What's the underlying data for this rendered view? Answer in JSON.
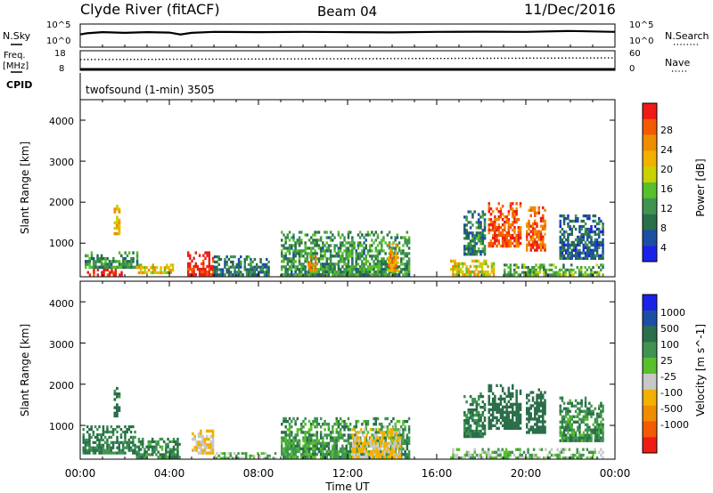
{
  "header": {
    "station": "Clyde River (fitACF)",
    "beam": "Beam 04",
    "date": "11/Dec/2016"
  },
  "sky_panel": {
    "left_label": "N.Sky",
    "right_label": "N.Search",
    "left_ticks": [
      "10^5",
      "10^0"
    ],
    "right_ticks": [
      "10^5",
      "10^0"
    ]
  },
  "freq_panel": {
    "left_label_1": "Freq.",
    "left_label_2": "[MHz]",
    "right_label": "Nave",
    "left_ticks": [
      "18",
      "8"
    ],
    "right_ticks": [
      "60",
      "0"
    ]
  },
  "cpid_panel": {
    "label": "CPID",
    "text": "twofsound (1-min) 3505"
  },
  "x_axis": {
    "tick_labels": [
      "00:00",
      "04:00",
      "08:00",
      "12:00",
      "16:00",
      "20:00",
      "00:00"
    ],
    "label": "Time UT"
  },
  "power_panel": {
    "ylabel": "Slant Range [km]",
    "yticks": [
      "1000",
      "2000",
      "3000",
      "4000"
    ],
    "colorbar_label": "Power [dB]",
    "colorbar_ticks": [
      "4",
      "8",
      "12",
      "16",
      "20",
      "24",
      "28"
    ],
    "colorbar_colors": [
      "#1a22e8",
      "#1c4fa3",
      "#2a6e4a",
      "#3f9452",
      "#58c02a",
      "#c9d100",
      "#f2b000",
      "#f08c00",
      "#f45a00",
      "#ee1c14"
    ]
  },
  "velocity_panel": {
    "ylabel": "Slant Range [km]",
    "yticks": [
      "1000",
      "2000",
      "3000",
      "4000"
    ],
    "colorbar_label": "Velocity [m s^-1]",
    "colorbar_ticks": [
      "1000",
      "500",
      "100",
      "25",
      "-25",
      "-100",
      "-500",
      "-1000"
    ],
    "colorbar_colors": [
      "#1a22e8",
      "#1c4fa3",
      "#2a6e4a",
      "#3f9452",
      "#58c02a",
      "#c8c8c8",
      "#f2b000",
      "#f08c00",
      "#f45a00",
      "#ee1c14"
    ]
  },
  "chart_data": [
    {
      "type": "line",
      "title": "N.Sky / N.Search",
      "x_range_hours": [
        0,
        24
      ],
      "series": [
        {
          "name": "N.Sky",
          "x": [
            0,
            0.3,
            1,
            2,
            3,
            4,
            4.5,
            5,
            6,
            8,
            10,
            12,
            14,
            16,
            18,
            20,
            22,
            24
          ],
          "y": [
            0.55,
            0.6,
            0.65,
            0.62,
            0.65,
            0.63,
            0.55,
            0.62,
            0.66,
            0.65,
            0.66,
            0.65,
            0.64,
            0.66,
            0.67,
            0.66,
            0.7,
            0.66
          ]
        }
      ]
    },
    {
      "type": "line",
      "title": "Freq / Nave",
      "x_range_hours": [
        0,
        24
      ],
      "series": [
        {
          "name": "Freq",
          "x": [
            0,
            24
          ],
          "y": [
            8.6,
            8.6
          ]
        },
        {
          "name": "Nave",
          "x": [
            0,
            24
          ],
          "y": [
            33,
            38
          ]
        }
      ]
    },
    {
      "type": "heatmap",
      "title": "Power [dB]",
      "xlabel": "Time UT",
      "ylabel": "Slant Range [km]",
      "x_range_hours": [
        0,
        24
      ],
      "ylim": [
        180,
        4500
      ],
      "z_range": [
        0,
        30
      ],
      "patches": [
        {
          "t0": 0.3,
          "t1": 1.9,
          "r0": 200,
          "r1": 380,
          "v": 29
        },
        {
          "t0": 0.2,
          "t1": 2.6,
          "r0": 380,
          "r1": 800,
          "v": 10
        },
        {
          "t0": 1.5,
          "t1": 1.8,
          "r0": 1200,
          "r1": 2000,
          "v": 20
        },
        {
          "t0": 2.5,
          "t1": 4.2,
          "r0": 250,
          "r1": 500,
          "v": 18
        },
        {
          "t0": 4.8,
          "t1": 6.0,
          "r0": 200,
          "r1": 800,
          "v": 29
        },
        {
          "t0": 6.0,
          "t1": 8.5,
          "r0": 200,
          "r1": 700,
          "v": 8
        },
        {
          "t0": 9.0,
          "t1": 14.8,
          "r0": 200,
          "r1": 1300,
          "v": 10
        },
        {
          "t0": 10.2,
          "t1": 10.6,
          "r0": 300,
          "r1": 700,
          "v": 22
        },
        {
          "t0": 13.8,
          "t1": 14.3,
          "r0": 300,
          "r1": 1000,
          "v": 21
        },
        {
          "t0": 16.6,
          "t1": 18.6,
          "r0": 200,
          "r1": 600,
          "v": 18
        },
        {
          "t0": 17.2,
          "t1": 18.2,
          "r0": 700,
          "r1": 1800,
          "v": 8
        },
        {
          "t0": 18.3,
          "t1": 19.8,
          "r0": 900,
          "r1": 2000,
          "v": 26
        },
        {
          "t0": 20.0,
          "t1": 20.9,
          "r0": 800,
          "r1": 1900,
          "v": 25
        },
        {
          "t0": 19.0,
          "t1": 23.5,
          "r0": 200,
          "r1": 500,
          "v": 12
        },
        {
          "t0": 21.5,
          "t1": 23.5,
          "r0": 600,
          "r1": 1700,
          "v": 6
        }
      ]
    },
    {
      "type": "heatmap",
      "title": "Velocity [m s^-1]",
      "xlabel": "Time UT",
      "ylabel": "Slant Range [km]",
      "x_range_hours": [
        0,
        24
      ],
      "ylim": [
        180,
        4500
      ],
      "z_range": [
        -1000,
        1000
      ],
      "patches": [
        {
          "t0": 0.1,
          "t1": 2.5,
          "r0": 300,
          "r1": 1000,
          "v": 120
        },
        {
          "t0": 1.5,
          "t1": 1.8,
          "r0": 1200,
          "r1": 2000,
          "v": 150
        },
        {
          "t0": 2.5,
          "t1": 4.5,
          "r0": 200,
          "r1": 700,
          "v": 100
        },
        {
          "t0": 5.0,
          "t1": 6.0,
          "r0": 300,
          "r1": 900,
          "v": -110
        },
        {
          "t0": 6.0,
          "t1": 8.8,
          "r0": 180,
          "r1": 350,
          "v": 0
        },
        {
          "t0": 9.0,
          "t1": 14.8,
          "r0": 200,
          "r1": 1200,
          "v": 60
        },
        {
          "t0": 12.2,
          "t1": 14.4,
          "r0": 200,
          "r1": 1000,
          "v": -120
        },
        {
          "t0": 16.6,
          "t1": 23.5,
          "r0": 180,
          "r1": 450,
          "v": 0
        },
        {
          "t0": 17.2,
          "t1": 18.2,
          "r0": 700,
          "r1": 1800,
          "v": 110
        },
        {
          "t0": 18.3,
          "t1": 19.8,
          "r0": 900,
          "r1": 2000,
          "v": 300
        },
        {
          "t0": 20.0,
          "t1": 20.9,
          "r0": 800,
          "r1": 1900,
          "v": 200
        },
        {
          "t0": 21.5,
          "t1": 23.5,
          "r0": 600,
          "r1": 1700,
          "v": 80
        }
      ]
    }
  ]
}
